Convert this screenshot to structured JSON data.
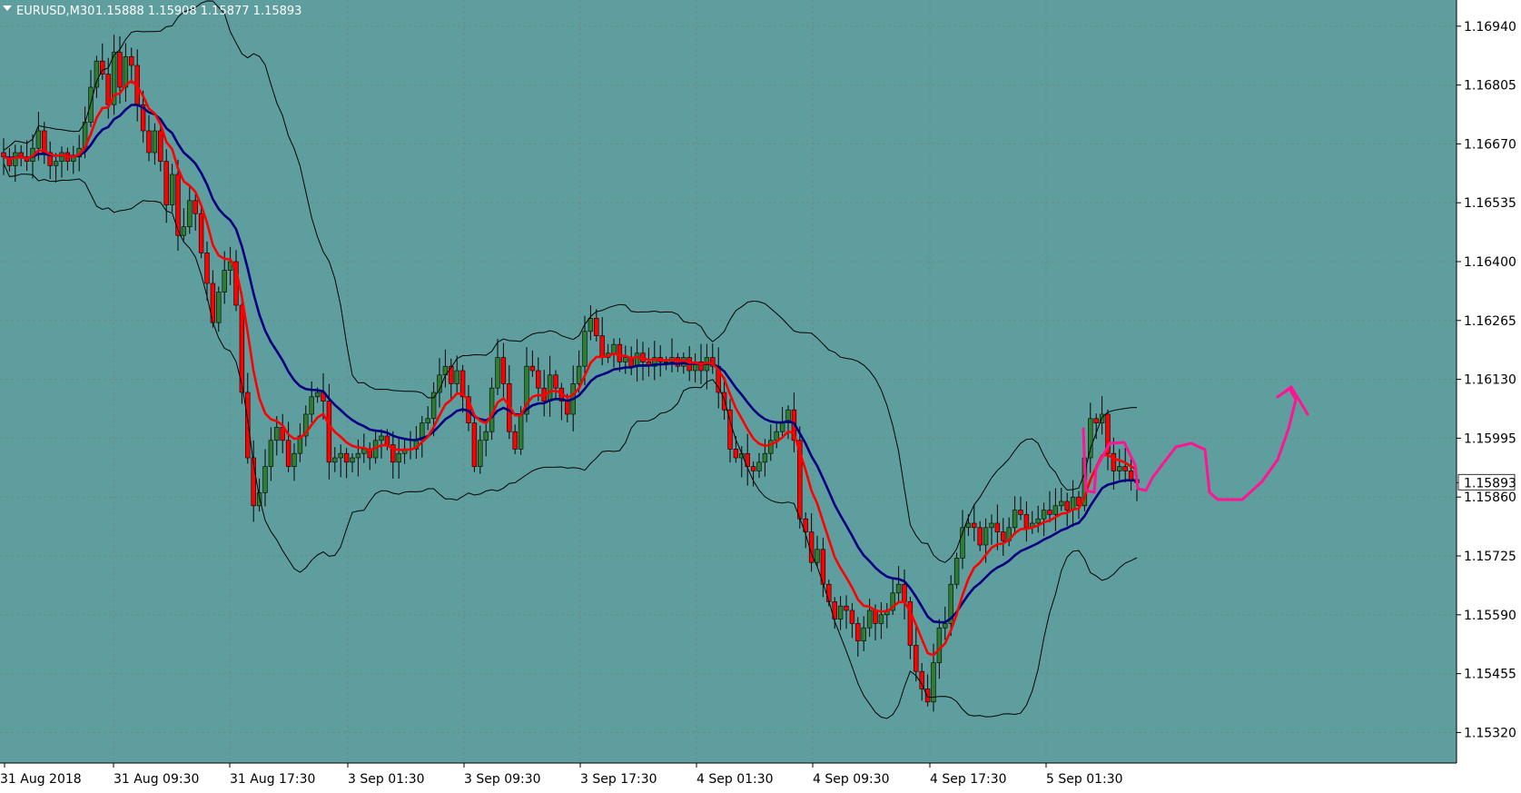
{
  "header": {
    "symbol_timeframe": "EURUSD,M30",
    "ohlc": "1.15888 1.15908 1.15877 1.15893"
  },
  "colors": {
    "background": "#5f9e9e",
    "frame": "#ffffff",
    "grid": "#6f7f7f",
    "bull_candle": "#2f7d32",
    "bear_candle": "#ff0000",
    "fast_ma": "#ff0000",
    "slow_ma": "#000080",
    "bands": "#000000",
    "annotation": "#ff1493",
    "text": "#000000"
  },
  "chart_data": {
    "type": "candlestick",
    "symbol": "EURUSD",
    "timeframe": "M30",
    "ylim": [
      1.1525,
      1.17
    ],
    "y_ticks": [
      "1.16940",
      "1.16805",
      "1.16670",
      "1.16535",
      "1.16400",
      "1.16265",
      "1.16130",
      "1.15995",
      "1.15860",
      "1.15725",
      "1.15590",
      "1.15455",
      "1.15320"
    ],
    "x_ticks": [
      "31 Aug 2018",
      "31 Aug 09:30",
      "31 Aug 17:30",
      "3 Sep 01:30",
      "3 Sep 09:30",
      "3 Sep 17:30",
      "4 Sep 01:30",
      "4 Sep 09:30",
      "4 Sep 17:30",
      "5 Sep 01:30"
    ],
    "current_price_label": "1.15893",
    "grid": true,
    "closes": [
      1.1664,
      1.1662,
      1.1665,
      1.1664,
      1.1663,
      1.1666,
      1.167,
      1.1665,
      1.1662,
      1.1663,
      1.1665,
      1.1663,
      1.1664,
      1.1666,
      1.1672,
      1.168,
      1.1686,
      1.1683,
      1.1676,
      1.1688,
      1.168,
      1.1687,
      1.1685,
      1.1676,
      1.167,
      1.1665,
      1.167,
      1.1663,
      1.1653,
      1.166,
      1.1646,
      1.1648,
      1.1654,
      1.1651,
      1.1642,
      1.1635,
      1.1626,
      1.1633,
      1.1638,
      1.164,
      1.163,
      1.161,
      1.1595,
      1.1584,
      1.1587,
      1.1593,
      1.1599,
      1.1602,
      1.1599,
      1.1593,
      1.1596,
      1.16,
      1.1605,
      1.1609,
      1.161,
      1.1608,
      1.1594,
      1.1595,
      1.1596,
      1.1594,
      1.1595,
      1.1596,
      1.1597,
      1.1595,
      1.1599,
      1.16,
      1.1598,
      1.1594,
      1.1596,
      1.1597,
      1.1597,
      1.1599,
      1.1603,
      1.1604,
      1.161,
      1.1614,
      1.1616,
      1.1612,
      1.1615,
      1.1609,
      1.1603,
      1.1593,
      1.1599,
      1.1601,
      1.1611,
      1.1618,
      1.1612,
      1.1601,
      1.1597,
      1.1605,
      1.1616,
      1.1615,
      1.1611,
      1.1608,
      1.1614,
      1.1611,
      1.1608,
      1.1605,
      1.1612,
      1.1616,
      1.1624,
      1.1627,
      1.1623,
      1.1618,
      1.1619,
      1.1621,
      1.1617,
      1.1618,
      1.1616,
      1.1619,
      1.1617,
      1.1616,
      1.1618,
      1.1617,
      1.1617,
      1.1618,
      1.1616,
      1.1618,
      1.1615,
      1.1617,
      1.1615,
      1.1618,
      1.1616,
      1.161,
      1.1606,
      1.1597,
      1.1595,
      1.1596,
      1.1593,
      1.1592,
      1.1594,
      1.1596,
      1.1599,
      1.1601,
      1.1603,
      1.1606,
      1.1599,
      1.1581,
      1.1578,
      1.1571,
      1.1574,
      1.1566,
      1.1562,
      1.1558,
      1.1561,
      1.156,
      1.1557,
      1.1553,
      1.1556,
      1.156,
      1.1557,
      1.1559,
      1.156,
      1.1564,
      1.1566,
      1.1562,
      1.1552,
      1.1546,
      1.1542,
      1.1539,
      1.1548,
      1.1556,
      1.1557,
      1.1566,
      1.1572,
      1.1579,
      1.158,
      1.1579,
      1.1575,
      1.1579,
      1.158,
      1.1578,
      1.1576,
      1.1579,
      1.1583,
      1.1582,
      1.1579,
      1.158,
      1.1581,
      1.1583,
      1.1582,
      1.1584,
      1.1585,
      1.1583,
      1.1586,
      1.1584,
      1.1595,
      1.1604,
      1.1603,
      1.1605,
      1.1596,
      1.1592,
      1.1593,
      1.1592,
      1.159,
      1.15893
    ],
    "bands_visible": true,
    "moving_averages": [
      "fast",
      "slow"
    ]
  },
  "annotation": {
    "kind": "hand-drawn projection",
    "color": "#ff1493"
  }
}
